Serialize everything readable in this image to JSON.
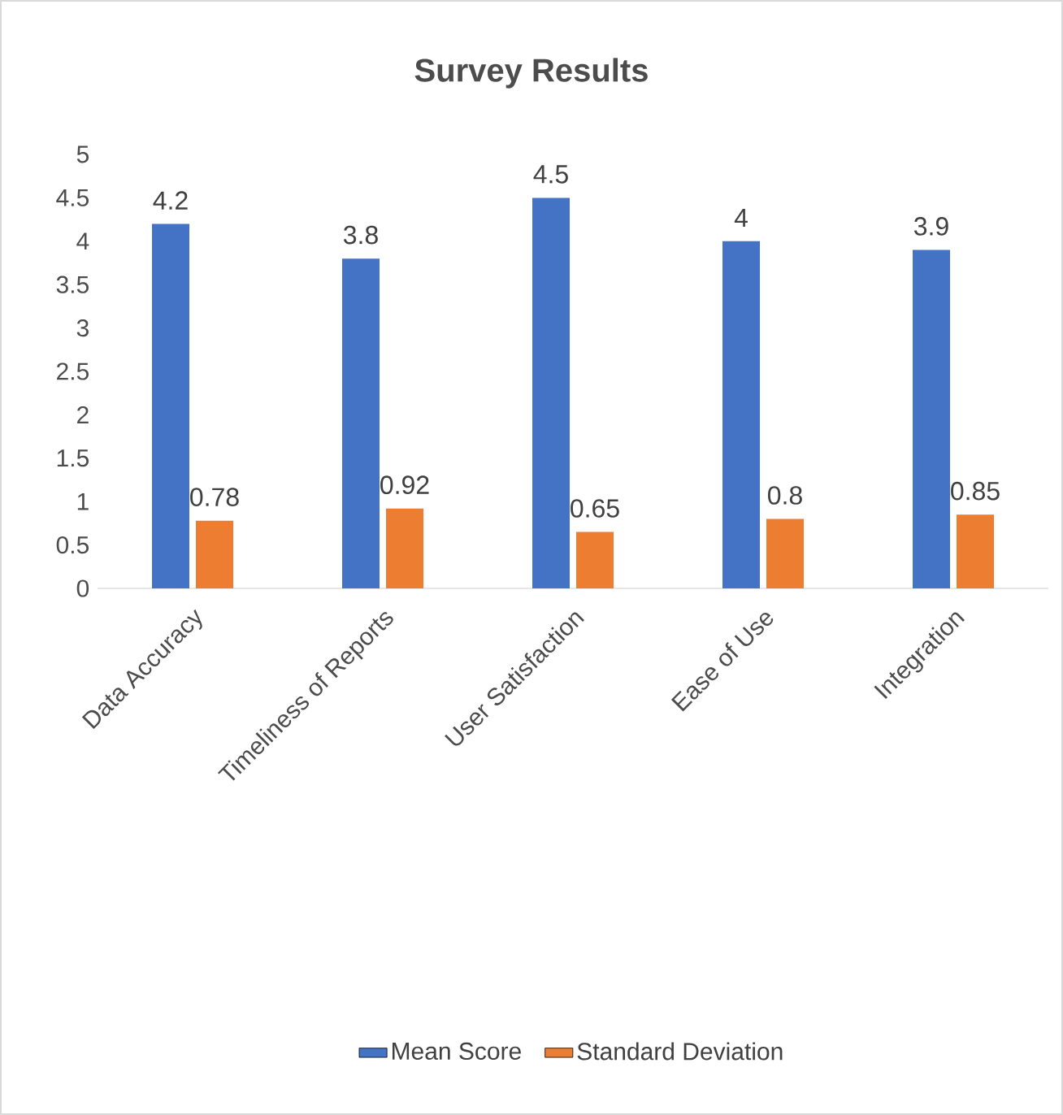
{
  "chart_data": {
    "type": "bar",
    "title": "Survey Results",
    "categories": [
      "Data Accuracy",
      "Timeliness of Reports",
      "User Satisfaction",
      "Ease of Use",
      "Integration"
    ],
    "series": [
      {
        "name": "Mean Score",
        "color": "#4472c4",
        "values": [
          4.2,
          3.8,
          4.5,
          4,
          3.9
        ]
      },
      {
        "name": "Standard Deviation",
        "color": "#ed7d31",
        "values": [
          0.78,
          0.92,
          0.65,
          0.8,
          0.85
        ]
      }
    ],
    "ylim": [
      0,
      5
    ],
    "yticks": [
      0,
      0.5,
      1,
      1.5,
      2,
      2.5,
      3,
      3.5,
      4,
      4.5,
      5
    ],
    "data_labels": true,
    "grid": false,
    "legend": "bottom"
  }
}
